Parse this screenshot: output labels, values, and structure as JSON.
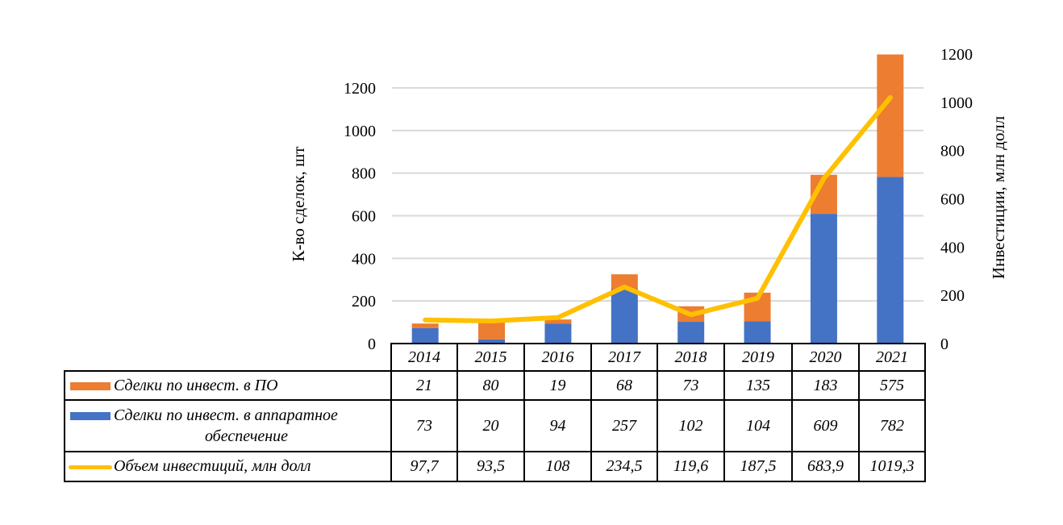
{
  "chart_data": {
    "type": "bar",
    "subtype": "stacked-bar-with-line-and-data-table",
    "categories": [
      "2014",
      "2015",
      "2016",
      "2017",
      "2018",
      "2019",
      "2020",
      "2021"
    ],
    "series": [
      {
        "name": "Сделки по инвест. в аппаратное обеспечение",
        "label_line1": "Сделки по инвест. в аппаратное",
        "label_line2": "обеспечение",
        "type": "bar",
        "axis": "left",
        "color": "#4472C4",
        "values": [
          73,
          20,
          94,
          257,
          102,
          104,
          609,
          782
        ],
        "display": [
          "73",
          "20",
          "94",
          "257",
          "102",
          "104",
          "609",
          "782"
        ]
      },
      {
        "name": "Сделки по инвест. в ПО",
        "type": "bar",
        "axis": "left",
        "color": "#ED7D31",
        "values": [
          21,
          80,
          19,
          68,
          73,
          135,
          183,
          575
        ],
        "display": [
          "21",
          "80",
          "19",
          "68",
          "73",
          "135",
          "183",
          "575"
        ]
      },
      {
        "name": "Объем инвестиций, млн долл",
        "type": "line",
        "axis": "right",
        "color": "#FFC000",
        "values": [
          97.7,
          93.5,
          108,
          234.5,
          119.6,
          187.5,
          683.9,
          1019.3
        ],
        "display": [
          "97,7",
          "93,5",
          "108",
          "234,5",
          "119,6",
          "187,5",
          "683,9",
          "1019,3"
        ]
      }
    ],
    "table_order": [
      1,
      0,
      2
    ],
    "ylabel": "К-во сделок, шт",
    "y2label": "Инвестиции, млн долл",
    "ylim": [
      0,
      1200
    ],
    "y2lim": [
      0,
      1200
    ],
    "yticks": [
      "0",
      "200",
      "400",
      "600",
      "800",
      "1000",
      "1200"
    ],
    "y2ticks": [
      "0",
      "200",
      "400",
      "600",
      "800",
      "1000",
      "1200"
    ],
    "grid": true,
    "legend": "data-table-bottom"
  }
}
